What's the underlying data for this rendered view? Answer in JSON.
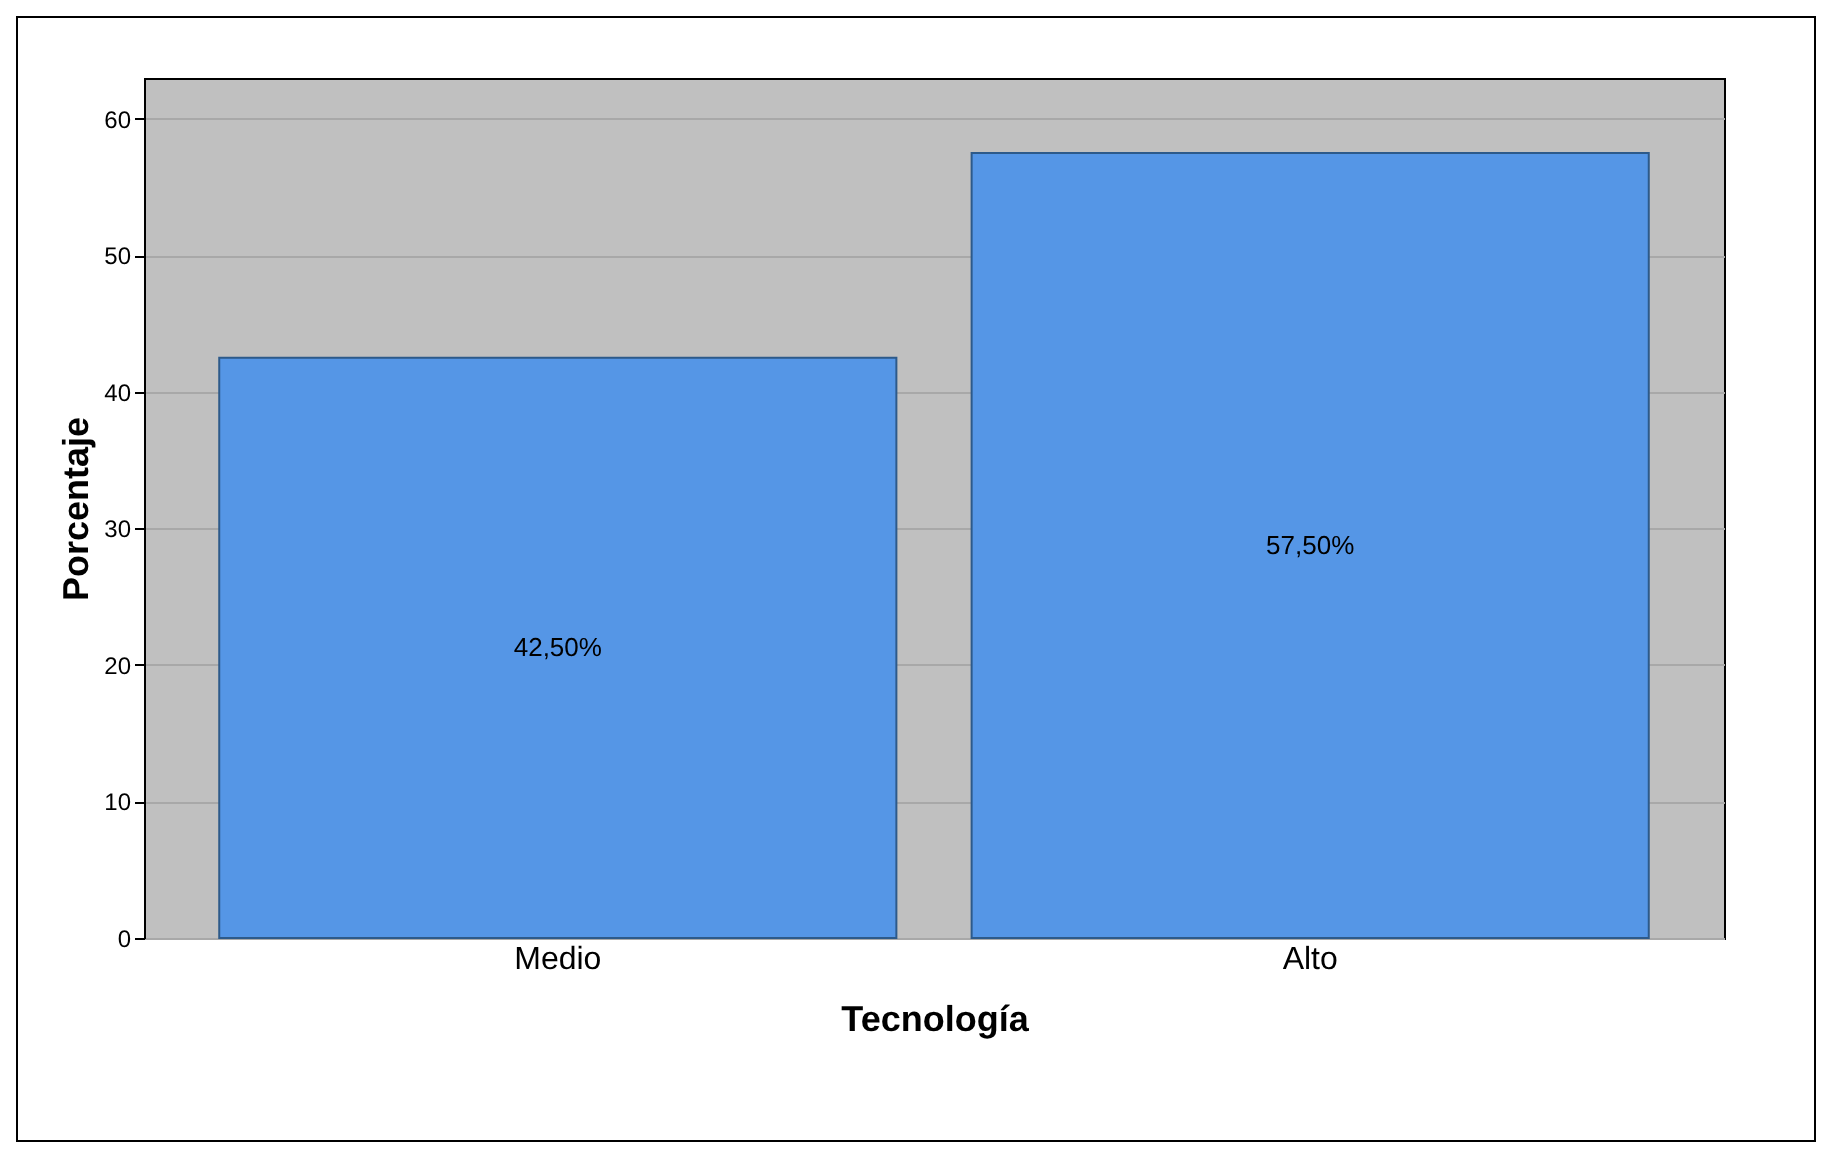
{
  "chart_data": {
    "type": "bar",
    "xlabel": "Tecnología",
    "ylabel": "Porcentaje",
    "categories": [
      "Medio",
      "Alto"
    ],
    "values": [
      42.5,
      57.5
    ],
    "value_labels": [
      "42,50%",
      "57,50%"
    ],
    "color": "#5596e6",
    "ylim": [
      0,
      63
    ],
    "yticks": [
      0,
      10,
      20,
      30,
      40,
      50,
      60
    ],
    "grid": "y"
  }
}
